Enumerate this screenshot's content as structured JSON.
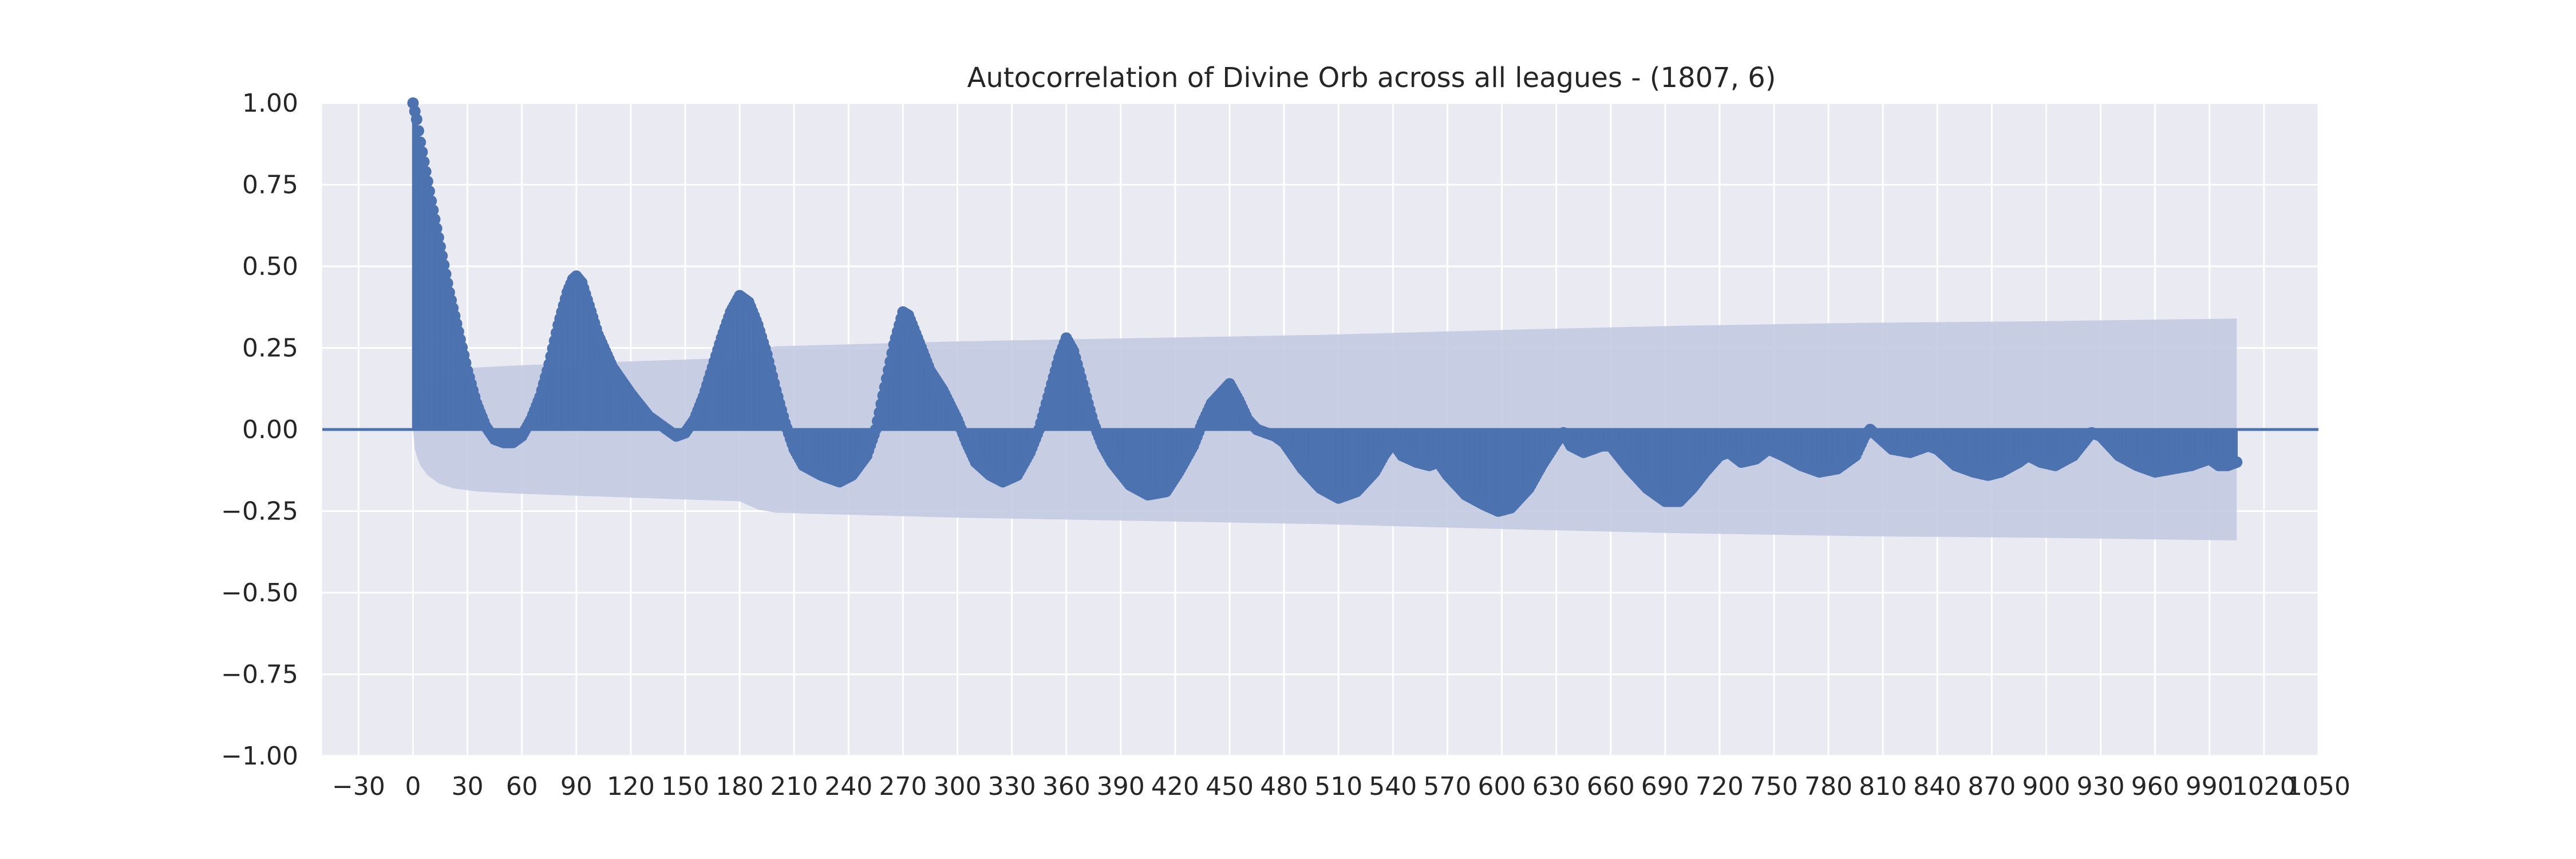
{
  "chart_data": {
    "type": "stem",
    "title": "Autocorrelation of Divine Orb across all leagues - (1807, 6)",
    "xlabel": "",
    "ylabel": "",
    "xlim": [
      -50,
      1050
    ],
    "ylim": [
      -1.0,
      1.0
    ],
    "xticks": [
      -30,
      0,
      30,
      60,
      90,
      120,
      150,
      180,
      210,
      240,
      270,
      300,
      330,
      360,
      390,
      420,
      450,
      480,
      510,
      540,
      570,
      600,
      630,
      660,
      690,
      720,
      750,
      780,
      810,
      840,
      870,
      900,
      930,
      960,
      990,
      1020,
      1050
    ],
    "yticks": [
      -1.0,
      -0.75,
      -0.5,
      -0.25,
      0.0,
      0.25,
      0.5,
      0.75,
      1.0
    ],
    "ytick_labels": [
      "−1.00",
      "−0.75",
      "−0.50",
      "−0.25",
      "0.00",
      "0.25",
      "0.50",
      "0.75",
      "1.00"
    ],
    "grid": true,
    "max_lag": 1005,
    "series_color": "#4c72b0",
    "band_color": "#c3cbe2",
    "background_color": "#eaeaf2",
    "acf_keypoints": [
      [
        0,
        1.0
      ],
      [
        2,
        0.95
      ],
      [
        4,
        0.88
      ],
      [
        6,
        0.82
      ],
      [
        10,
        0.7
      ],
      [
        15,
        0.56
      ],
      [
        20,
        0.42
      ],
      [
        25,
        0.3
      ],
      [
        30,
        0.18
      ],
      [
        35,
        0.08
      ],
      [
        40,
        0.01
      ],
      [
        45,
        -0.03
      ],
      [
        50,
        -0.04
      ],
      [
        55,
        -0.04
      ],
      [
        60,
        -0.02
      ],
      [
        65,
        0.03
      ],
      [
        70,
        0.1
      ],
      [
        75,
        0.2
      ],
      [
        80,
        0.32
      ],
      [
        85,
        0.42
      ],
      [
        88,
        0.46
      ],
      [
        90,
        0.47
      ],
      [
        93,
        0.45
      ],
      [
        97,
        0.38
      ],
      [
        102,
        0.29
      ],
      [
        110,
        0.19
      ],
      [
        120,
        0.11
      ],
      [
        130,
        0.04
      ],
      [
        140,
        0.0
      ],
      [
        145,
        -0.02
      ],
      [
        150,
        -0.01
      ],
      [
        155,
        0.03
      ],
      [
        160,
        0.1
      ],
      [
        165,
        0.19
      ],
      [
        170,
        0.28
      ],
      [
        175,
        0.36
      ],
      [
        180,
        0.41
      ],
      [
        185,
        0.39
      ],
      [
        190,
        0.32
      ],
      [
        195,
        0.23
      ],
      [
        200,
        0.12
      ],
      [
        205,
        0.02
      ],
      [
        210,
        -0.06
      ],
      [
        215,
        -0.11
      ],
      [
        225,
        -0.14
      ],
      [
        235,
        -0.16
      ],
      [
        242,
        -0.14
      ],
      [
        250,
        -0.08
      ],
      [
        255,
        0.0
      ],
      [
        260,
        0.13
      ],
      [
        265,
        0.26
      ],
      [
        270,
        0.36
      ],
      [
        273,
        0.35
      ],
      [
        278,
        0.28
      ],
      [
        285,
        0.18
      ],
      [
        292,
        0.12
      ],
      [
        300,
        0.03
      ],
      [
        305,
        -0.04
      ],
      [
        310,
        -0.1
      ],
      [
        318,
        -0.14
      ],
      [
        325,
        -0.16
      ],
      [
        333,
        -0.14
      ],
      [
        340,
        -0.07
      ],
      [
        345,
        0.0
      ],
      [
        350,
        0.1
      ],
      [
        356,
        0.22
      ],
      [
        360,
        0.28
      ],
      [
        364,
        0.24
      ],
      [
        370,
        0.12
      ],
      [
        375,
        0.02
      ],
      [
        380,
        -0.05
      ],
      [
        385,
        -0.1
      ],
      [
        395,
        -0.17
      ],
      [
        405,
        -0.2
      ],
      [
        415,
        -0.19
      ],
      [
        422,
        -0.13
      ],
      [
        430,
        -0.05
      ],
      [
        435,
        0.02
      ],
      [
        440,
        0.08
      ],
      [
        445,
        0.11
      ],
      [
        450,
        0.14
      ],
      [
        455,
        0.09
      ],
      [
        460,
        0.03
      ],
      [
        465,
        0.0
      ],
      [
        470,
        -0.01
      ],
      [
        475,
        -0.02
      ],
      [
        480,
        -0.04
      ],
      [
        490,
        -0.12
      ],
      [
        500,
        -0.18
      ],
      [
        510,
        -0.21
      ],
      [
        520,
        -0.19
      ],
      [
        530,
        -0.13
      ],
      [
        535,
        -0.08
      ],
      [
        540,
        -0.04
      ],
      [
        545,
        -0.08
      ],
      [
        553,
        -0.1
      ],
      [
        560,
        -0.11
      ],
      [
        565,
        -0.1
      ],
      [
        570,
        -0.14
      ],
      [
        580,
        -0.2
      ],
      [
        590,
        -0.23
      ],
      [
        598,
        -0.25
      ],
      [
        605,
        -0.24
      ],
      [
        615,
        -0.18
      ],
      [
        622,
        -0.11
      ],
      [
        630,
        -0.04
      ],
      [
        634,
        -0.01
      ],
      [
        638,
        -0.05
      ],
      [
        645,
        -0.07
      ],
      [
        655,
        -0.05
      ],
      [
        660,
        -0.05
      ],
      [
        670,
        -0.12
      ],
      [
        680,
        -0.18
      ],
      [
        690,
        -0.22
      ],
      [
        698,
        -0.22
      ],
      [
        705,
        -0.18
      ],
      [
        712,
        -0.13
      ],
      [
        720,
        -0.08
      ],
      [
        725,
        -0.07
      ],
      [
        732,
        -0.1
      ],
      [
        740,
        -0.09
      ],
      [
        747,
        -0.06
      ],
      [
        755,
        -0.08
      ],
      [
        765,
        -0.11
      ],
      [
        775,
        -0.13
      ],
      [
        785,
        -0.12
      ],
      [
        795,
        -0.08
      ],
      [
        800,
        -0.02
      ],
      [
        803,
        0.0
      ],
      [
        807,
        -0.02
      ],
      [
        815,
        -0.06
      ],
      [
        825,
        -0.07
      ],
      [
        835,
        -0.05
      ],
      [
        840,
        -0.06
      ],
      [
        850,
        -0.11
      ],
      [
        860,
        -0.13
      ],
      [
        868,
        -0.14
      ],
      [
        875,
        -0.13
      ],
      [
        885,
        -0.1
      ],
      [
        890,
        -0.08
      ],
      [
        897,
        -0.1
      ],
      [
        905,
        -0.11
      ],
      [
        915,
        -0.08
      ],
      [
        925,
        -0.01
      ],
      [
        930,
        -0.02
      ],
      [
        940,
        -0.08
      ],
      [
        950,
        -0.11
      ],
      [
        960,
        -0.13
      ],
      [
        970,
        -0.12
      ],
      [
        980,
        -0.11
      ],
      [
        990,
        -0.09
      ],
      [
        995,
        -0.11
      ],
      [
        1000,
        -0.11
      ],
      [
        1005,
        -0.1
      ]
    ],
    "confidence_band": [
      [
        0,
        0.0
      ],
      [
        1,
        0.06
      ],
      [
        2,
        0.08
      ],
      [
        4,
        0.11
      ],
      [
        8,
        0.14
      ],
      [
        14,
        0.165
      ],
      [
        22,
        0.18
      ],
      [
        35,
        0.19
      ],
      [
        60,
        0.197
      ],
      [
        100,
        0.205
      ],
      [
        180,
        0.22
      ],
      [
        190,
        0.245
      ],
      [
        200,
        0.255
      ],
      [
        300,
        0.27
      ],
      [
        400,
        0.28
      ],
      [
        500,
        0.29
      ],
      [
        600,
        0.305
      ],
      [
        700,
        0.318
      ],
      [
        800,
        0.327
      ],
      [
        900,
        0.332
      ],
      [
        1005,
        0.34
      ]
    ]
  }
}
